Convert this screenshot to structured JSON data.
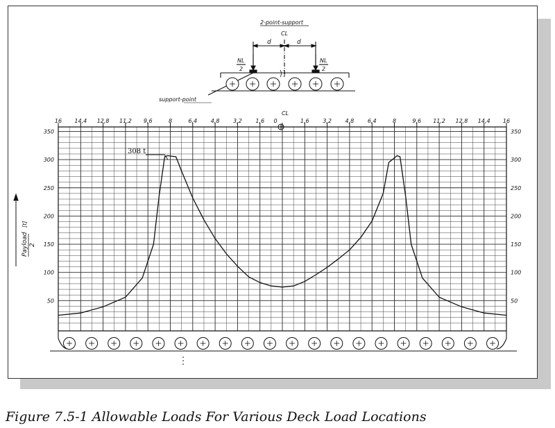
{
  "caption": "Figure 7.5-1 Allowable Loads For Various Deck Load Locations",
  "sketch": {
    "title": "2-point-support",
    "centerline_label": "CL",
    "dim_label": "d",
    "load_num": "NL",
    "load_den": "2",
    "support_label": "support-point"
  },
  "colors": {
    "ink": "#111111",
    "grid": "#2a2a2a",
    "shadow": "#c9c9c9"
  },
  "chart_data": {
    "type": "line",
    "title": "",
    "xlabel": "",
    "ylabel_text": "Payload",
    "ylabel_den": "2",
    "ylabel_unit": "[t]",
    "x_ticks": [
      {
        "v": -16,
        "label": "16"
      },
      {
        "v": -14.4,
        "label": "14,4"
      },
      {
        "v": -12.8,
        "label": "12,8"
      },
      {
        "v": -11.2,
        "label": "11,2"
      },
      {
        "v": -9.6,
        "label": "9,6"
      },
      {
        "v": -8,
        "label": "8"
      },
      {
        "v": -6.4,
        "label": "6,4"
      },
      {
        "v": -4.8,
        "label": "4,8"
      },
      {
        "v": -3.2,
        "label": "3,2"
      },
      {
        "v": -1.6,
        "label": "1,6"
      },
      {
        "v": 0,
        "label": "0"
      },
      {
        "v": 1.6,
        "label": "1,6"
      },
      {
        "v": 3.2,
        "label": "3,2"
      },
      {
        "v": 4.8,
        "label": "4,8"
      },
      {
        "v": 6.4,
        "label": "6,4"
      },
      {
        "v": 8,
        "label": "8"
      },
      {
        "v": 9.6,
        "label": "9,6"
      },
      {
        "v": 11.2,
        "label": "11,2"
      },
      {
        "v": 12.8,
        "label": "12,8"
      },
      {
        "v": 14.4,
        "label": "14,4"
      },
      {
        "v": 16,
        "label": "16"
      }
    ],
    "y_ticks_left": [
      50,
      100,
      150,
      200,
      250,
      300,
      350
    ],
    "y_ticks_right": [
      50,
      100,
      150,
      200,
      250,
      300,
      350
    ],
    "xlim": [
      -16,
      16
    ],
    "ylim": [
      0,
      350
    ],
    "grid": true,
    "annotation": "308 t",
    "centerline_label": "CL",
    "series": [
      {
        "x": [
          -16,
          -14.4,
          -12.8,
          -11.2,
          -10,
          -9.2,
          -8.8,
          -8.4,
          -8.2,
          -7.6,
          -7.2,
          -6.4,
          -5.6,
          -4.8,
          -4,
          -3.2,
          -2.4,
          -1.6,
          -0.8,
          0,
          0.8,
          1.6,
          2.4,
          3.2,
          4,
          4.8,
          5.6,
          6.4,
          7.2,
          7.6,
          8.2,
          8.4,
          8.8,
          9.2,
          10,
          11.2,
          12.8,
          14.4,
          16
        ],
        "y": [
          24,
          28,
          39,
          56,
          90,
          150,
          235,
          305,
          307,
          305,
          280,
          232,
          193,
          160,
          133,
          111,
          92,
          82,
          76,
          74,
          76,
          84,
          96,
          109,
          124,
          140,
          162,
          191,
          240,
          295,
          307,
          305,
          235,
          150,
          90,
          56,
          39,
          28,
          24
        ]
      }
    ]
  }
}
